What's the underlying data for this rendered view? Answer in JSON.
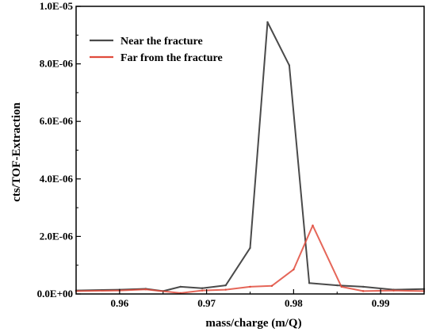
{
  "chart_data": {
    "type": "line",
    "title": "",
    "xlabel": "mass/charge (m/Q)",
    "ylabel": "cts/TOF-Extraction",
    "xlim": [
      0.955,
      0.995
    ],
    "ylim": [
      0,
      1e-05
    ],
    "xticks": [
      0.96,
      0.97,
      0.98,
      0.99
    ],
    "xtick_labels": [
      "0.96",
      "0.97",
      "0.98",
      "0.99"
    ],
    "yticks": [
      0,
      2e-06,
      4e-06,
      6e-06,
      8e-06,
      1e-05
    ],
    "ytick_labels": [
      "0.0E+00",
      "2.0E-06",
      "4.0E-06",
      "6.0E-06",
      "8.0E-06",
      "1.0E-05"
    ],
    "grid": false,
    "legend_position": "top-left",
    "series": [
      {
        "name": "Near the fracture",
        "color": "#4a4a4a",
        "x": [
          0.955,
          0.96,
          0.963,
          0.965,
          0.967,
          0.9695,
          0.9722,
          0.975,
          0.977,
          0.9795,
          0.9818,
          0.985,
          0.988,
          0.9915,
          0.995
        ],
        "y": [
          1.2e-07,
          1.5e-07,
          1.8e-07,
          1e-07,
          2.5e-07,
          2e-07,
          3e-07,
          1.6e-06,
          9.45e-06,
          7.95e-06,
          3.8e-07,
          3e-07,
          2.5e-07,
          1.5e-07,
          1.7e-07
        ]
      },
      {
        "name": "Far from the fracture",
        "color": "#e04b3c",
        "x": [
          0.955,
          0.96,
          0.963,
          0.967,
          0.9695,
          0.9722,
          0.975,
          0.9775,
          0.98,
          0.9822,
          0.9855,
          0.988,
          0.9915,
          0.995
        ],
        "y": [
          1e-07,
          1.2e-07,
          1.6e-07,
          3e-08,
          1.2e-07,
          1.5e-07,
          2.5e-07,
          2.8e-07,
          8.5e-07,
          2.38e-06,
          2.5e-07,
          1e-07,
          1.2e-07,
          1e-07
        ]
      }
    ]
  }
}
